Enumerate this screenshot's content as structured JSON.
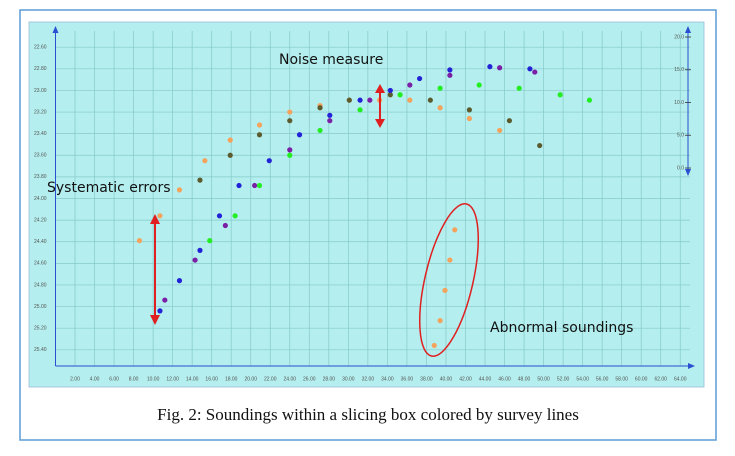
{
  "chart_data": {
    "type": "scatter",
    "caption": "Fig. 2: Soundings within a slicing box colored by survey lines",
    "annotations": [
      "Noise measure",
      "Systematic errors",
      "Abnormal soundings"
    ],
    "xlim": [
      0,
      65
    ],
    "xticks": [
      {
        "value": 2,
        "label": "2.00"
      },
      {
        "value": 4,
        "label": "4.00"
      },
      {
        "value": 6,
        "label": "6.00"
      },
      {
        "value": 8,
        "label": "8.00"
      },
      {
        "value": 10,
        "label": "10.00"
      },
      {
        "value": 12,
        "label": "12.00"
      },
      {
        "value": 14,
        "label": "14.00"
      },
      {
        "value": 16,
        "label": "16.00"
      },
      {
        "value": 18,
        "label": "18.00"
      },
      {
        "value": 20,
        "label": "20.00"
      },
      {
        "value": 22,
        "label": "22.00"
      },
      {
        "value": 24,
        "label": "24.00"
      },
      {
        "value": 26,
        "label": "26.00"
      },
      {
        "value": 28,
        "label": "28.00"
      },
      {
        "value": 30,
        "label": "30.00"
      },
      {
        "value": 32,
        "label": "32.00"
      },
      {
        "value": 34,
        "label": "34.00"
      },
      {
        "value": 36,
        "label": "36.00"
      },
      {
        "value": 38,
        "label": "38.00"
      },
      {
        "value": 40,
        "label": "40.00"
      },
      {
        "value": 42,
        "label": "42.00"
      },
      {
        "value": 44,
        "label": "44.00"
      },
      {
        "value": 46,
        "label": "46.00"
      },
      {
        "value": 48,
        "label": "48.00"
      },
      {
        "value": 50,
        "label": "50.00"
      },
      {
        "value": 52,
        "label": "52.00"
      },
      {
        "value": 54,
        "label": "54.00"
      },
      {
        "value": 56,
        "label": "56.00"
      },
      {
        "value": 58,
        "label": "58.00"
      },
      {
        "value": 60,
        "label": "60.00"
      },
      {
        "value": 62,
        "label": "62.00"
      },
      {
        "value": 64,
        "label": "64.00"
      }
    ],
    "ylim": [
      25.55,
      22.45
    ],
    "yticks": [
      {
        "value": 22.6,
        "label": "22.60"
      },
      {
        "value": 22.8,
        "label": "22.80"
      },
      {
        "value": 23,
        "label": "23.00"
      },
      {
        "value": 23.2,
        "label": "23.20"
      },
      {
        "value": 23.4,
        "label": "23.40"
      },
      {
        "value": 23.6,
        "label": "23.60"
      },
      {
        "value": 23.8,
        "label": "23.80"
      },
      {
        "value": 24,
        "label": "24.00"
      },
      {
        "value": 24.2,
        "label": "24.20"
      },
      {
        "value": 24.4,
        "label": "24.40"
      },
      {
        "value": 24.6,
        "label": "24.60"
      },
      {
        "value": 24.8,
        "label": "24.80"
      },
      {
        "value": 25,
        "label": "25.00"
      },
      {
        "value": 25.2,
        "label": "25.20"
      },
      {
        "value": 25.4,
        "label": "25.40"
      }
    ],
    "y2lim": [
      0,
      20
    ],
    "y2ticks": [
      {
        "value": 20,
        "label": "20.0"
      },
      {
        "value": 15,
        "label": "15.0"
      },
      {
        "value": 10,
        "label": "10.0"
      },
      {
        "value": 5,
        "label": "5.0"
      },
      {
        "value": 0,
        "label": "0.0"
      }
    ],
    "grid": true,
    "series": [
      {
        "color": "#f4a35c",
        "x": [
          8.6,
          10.7,
          12.7,
          15.3,
          17.9,
          20.9,
          24.0,
          27.1,
          30.1,
          33.2,
          36.3,
          39.4,
          42.4,
          45.5,
          38.8,
          39.4,
          39.9,
          40.4,
          40.9
        ],
        "values": [
          24.39,
          24.16,
          23.92,
          23.65,
          23.46,
          23.32,
          23.2,
          23.14,
          23.09,
          23.09,
          23.09,
          23.16,
          23.26,
          23.37,
          25.36,
          25.13,
          24.85,
          24.57,
          24.29
        ]
      },
      {
        "color": "#5b5b2e",
        "x": [
          14.8,
          17.9,
          20.9,
          24.0,
          27.1,
          30.1,
          34.3,
          38.4,
          42.4,
          46.5,
          49.6
        ],
        "values": [
          23.83,
          23.6,
          23.41,
          23.28,
          23.16,
          23.09,
          23.04,
          23.09,
          23.18,
          23.28,
          23.51
        ]
      },
      {
        "color": "#2222d6",
        "x": [
          10.7,
          12.7,
          14.8,
          16.8,
          18.8,
          21.9,
          25.0,
          28.1,
          31.2,
          34.3,
          37.3,
          40.4,
          44.5,
          48.6
        ],
        "values": [
          25.04,
          24.76,
          24.48,
          24.16,
          23.88,
          23.65,
          23.41,
          23.23,
          23.09,
          23.0,
          22.89,
          22.81,
          22.78,
          22.8
        ]
      },
      {
        "color": "#7a1fa6",
        "x": [
          11.2,
          14.3,
          17.4,
          20.4,
          24.0,
          28.1,
          32.2,
          36.3,
          40.4,
          45.5,
          49.1
        ],
        "values": [
          24.94,
          24.57,
          24.25,
          23.88,
          23.55,
          23.28,
          23.09,
          22.95,
          22.86,
          22.79,
          22.83
        ]
      },
      {
        "color": "#22ee22",
        "x": [
          15.8,
          18.4,
          20.9,
          24.0,
          27.1,
          31.2,
          35.3,
          39.4,
          43.4,
          47.5,
          51.7,
          54.7
        ],
        "values": [
          24.39,
          24.16,
          23.88,
          23.6,
          23.37,
          23.18,
          23.04,
          22.98,
          22.95,
          22.98,
          23.04,
          23.09
        ]
      }
    ]
  }
}
